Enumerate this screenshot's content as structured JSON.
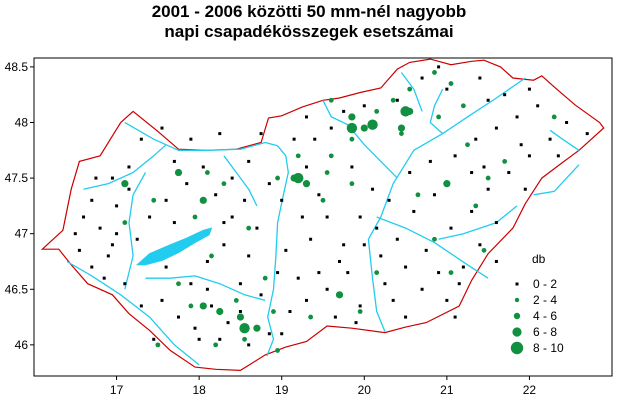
{
  "title_line1": "2001 - 2006 közötti 50 mm-nél nagyobb",
  "title_line2": "napi csapadékösszegek esetszámai",
  "colors": {
    "border": "#cc0000",
    "river": "#22ccee",
    "lake": "#22ccee",
    "dot": "#109040",
    "small": "#000000"
  },
  "chart_data": {
    "type": "scatter",
    "xlim": [
      16.0,
      23.0
    ],
    "ylim": [
      45.72,
      48.58
    ],
    "x_ticks": [
      "17",
      "18",
      "19",
      "20",
      "21",
      "22"
    ],
    "y_ticks": [
      "46",
      "46.5",
      "47",
      "47.5",
      "48",
      "48.5"
    ],
    "legend_title": "db",
    "legend_items": [
      "0 - 2",
      "2 - 4",
      "4 - 6",
      "6 - 8",
      "8 - 10"
    ],
    "border": [
      [
        16.1,
        46.86
      ],
      [
        16.35,
        47.03
      ],
      [
        16.45,
        47.4
      ],
      [
        16.55,
        47.65
      ],
      [
        16.8,
        47.7
      ],
      [
        17.05,
        48.0
      ],
      [
        17.2,
        48.1
      ],
      [
        17.5,
        47.92
      ],
      [
        17.75,
        47.76
      ],
      [
        18.1,
        47.75
      ],
      [
        18.45,
        47.76
      ],
      [
        18.75,
        47.82
      ],
      [
        18.84,
        48.04
      ],
      [
        19.0,
        48.06
      ],
      [
        19.25,
        48.14
      ],
      [
        19.5,
        48.2
      ],
      [
        19.7,
        48.22
      ],
      [
        19.95,
        48.27
      ],
      [
        20.2,
        48.31
      ],
      [
        20.4,
        48.48
      ],
      [
        20.55,
        48.54
      ],
      [
        20.8,
        48.57
      ],
      [
        21.05,
        48.52
      ],
      [
        21.3,
        48.55
      ],
      [
        21.45,
        48.56
      ],
      [
        21.65,
        48.5
      ],
      [
        21.8,
        48.4
      ],
      [
        22.05,
        48.38
      ],
      [
        22.15,
        48.42
      ],
      [
        22.3,
        48.32
      ],
      [
        22.55,
        48.16
      ],
      [
        22.85,
        48.0
      ],
      [
        22.9,
        47.95
      ],
      [
        22.6,
        47.75
      ],
      [
        22.4,
        47.64
      ],
      [
        22.15,
        47.5
      ],
      [
        21.95,
        47.27
      ],
      [
        21.8,
        47.05
      ],
      [
        21.5,
        46.82
      ],
      [
        21.3,
        46.58
      ],
      [
        21.15,
        46.35
      ],
      [
        20.75,
        46.2
      ],
      [
        20.5,
        46.16
      ],
      [
        20.25,
        46.11
      ],
      [
        19.85,
        46.15
      ],
      [
        19.55,
        46.17
      ],
      [
        19.3,
        46.03
      ],
      [
        19.05,
        45.98
      ],
      [
        18.8,
        45.91
      ],
      [
        18.5,
        45.77
      ],
      [
        18.2,
        45.78
      ],
      [
        17.95,
        45.8
      ],
      [
        17.65,
        45.95
      ],
      [
        17.4,
        46.13
      ],
      [
        17.15,
        46.28
      ],
      [
        16.95,
        46.45
      ],
      [
        16.65,
        46.55
      ],
      [
        16.45,
        46.72
      ],
      [
        16.3,
        46.86
      ]
    ],
    "rivers": [
      [
        [
          18.95,
          47.79
        ],
        [
          19.05,
          47.7
        ],
        [
          19.08,
          47.55
        ],
        [
          19.02,
          47.35
        ],
        [
          18.95,
          47.1
        ],
        [
          18.93,
          46.8
        ],
        [
          18.9,
          46.5
        ],
        [
          18.83,
          46.25
        ],
        [
          18.9,
          46.05
        ],
        [
          18.82,
          45.9
        ]
      ],
      [
        [
          17.1,
          48.0
        ],
        [
          17.45,
          47.85
        ],
        [
          17.75,
          47.75
        ],
        [
          18.1,
          47.75
        ],
        [
          18.5,
          47.76
        ],
        [
          18.8,
          47.82
        ],
        [
          18.95,
          47.79
        ]
      ],
      [
        [
          21.95,
          48.4
        ],
        [
          21.6,
          48.22
        ],
        [
          21.25,
          48.05
        ],
        [
          20.95,
          47.9
        ],
        [
          20.6,
          47.75
        ],
        [
          20.35,
          47.45
        ],
        [
          20.2,
          47.15
        ],
        [
          20.05,
          46.95
        ],
        [
          20.1,
          46.6
        ],
        [
          20.15,
          46.3
        ],
        [
          20.25,
          46.12
        ]
      ],
      [
        [
          22.25,
          47.93
        ],
        [
          22.4,
          47.85
        ],
        [
          22.6,
          47.75
        ]
      ],
      [
        [
          20.95,
          48.3
        ],
        [
          20.85,
          48.15
        ],
        [
          20.8,
          48.0
        ],
        [
          20.95,
          47.9
        ]
      ],
      [
        [
          20.45,
          48.45
        ],
        [
          20.6,
          48.3
        ],
        [
          20.7,
          48.1
        ]
      ],
      [
        [
          19.5,
          48.2
        ],
        [
          19.6,
          48.05
        ],
        [
          19.8,
          47.98
        ],
        [
          20.0,
          47.8
        ],
        [
          20.2,
          47.65
        ],
        [
          20.4,
          47.5
        ]
      ],
      [
        [
          20.15,
          47.15
        ],
        [
          20.5,
          47.05
        ],
        [
          20.85,
          46.92
        ],
        [
          21.25,
          46.72
        ],
        [
          21.5,
          46.6
        ]
      ],
      [
        [
          21.85,
          47.25
        ],
        [
          21.6,
          47.1
        ],
        [
          21.2,
          47.0
        ],
        [
          20.9,
          46.95
        ]
      ],
      [
        [
          16.6,
          47.4
        ],
        [
          16.9,
          47.45
        ],
        [
          17.2,
          47.55
        ],
        [
          17.45,
          47.7
        ],
        [
          17.6,
          47.8
        ]
      ],
      [
        [
          17.1,
          46.5
        ],
        [
          17.2,
          46.8
        ],
        [
          17.15,
          47.1
        ],
        [
          17.2,
          47.35
        ],
        [
          17.35,
          47.55
        ]
      ],
      [
        [
          17.35,
          46.6
        ],
        [
          17.65,
          46.6
        ],
        [
          17.95,
          46.62
        ],
        [
          18.25,
          46.55
        ],
        [
          18.55,
          46.45
        ],
        [
          18.8,
          46.4
        ]
      ],
      [
        [
          16.4,
          46.75
        ],
        [
          16.7,
          46.62
        ],
        [
          17.05,
          46.45
        ],
        [
          17.4,
          46.25
        ],
        [
          17.7,
          46.0
        ],
        [
          18.0,
          45.82
        ]
      ],
      [
        [
          22.05,
          47.35
        ],
        [
          22.3,
          47.38
        ],
        [
          22.6,
          47.62
        ]
      ],
      [
        [
          18.3,
          47.7
        ],
        [
          18.45,
          47.55
        ],
        [
          18.6,
          47.4
        ],
        [
          18.7,
          47.25
        ]
      ]
    ],
    "lake": [
      [
        17.25,
        46.72
      ],
      [
        17.4,
        46.82
      ],
      [
        17.65,
        46.9
      ],
      [
        17.85,
        46.96
      ],
      [
        18.05,
        47.03
      ],
      [
        18.15,
        47.05
      ],
      [
        18.12,
        46.99
      ],
      [
        17.95,
        46.92
      ],
      [
        17.75,
        46.83
      ],
      [
        17.55,
        46.76
      ],
      [
        17.35,
        46.72
      ]
    ],
    "small_points": [
      [
        16.5,
        47.0
      ],
      [
        16.6,
        47.15
      ],
      [
        16.7,
        47.3
      ],
      [
        16.55,
        46.85
      ],
      [
        16.85,
        46.6
      ],
      [
        16.9,
        46.8
      ],
      [
        16.8,
        47.05
      ],
      [
        17.0,
        47.0
      ],
      [
        17.0,
        47.25
      ],
      [
        16.95,
        47.5
      ],
      [
        17.15,
        47.6
      ],
      [
        17.3,
        47.85
      ],
      [
        17.55,
        47.95
      ],
      [
        17.7,
        47.65
      ],
      [
        17.85,
        47.45
      ],
      [
        17.6,
        47.3
      ],
      [
        17.4,
        47.15
      ],
      [
        17.25,
        46.95
      ],
      [
        17.55,
        46.4
      ],
      [
        17.3,
        46.35
      ],
      [
        17.1,
        46.55
      ],
      [
        17.75,
        46.25
      ],
      [
        17.95,
        46.15
      ],
      [
        18.15,
        46.35
      ],
      [
        17.9,
        46.55
      ],
      [
        18.1,
        46.75
      ],
      [
        18.3,
        46.9
      ],
      [
        18.4,
        47.15
      ],
      [
        18.2,
        47.35
      ],
      [
        18.05,
        47.6
      ],
      [
        18.4,
        47.5
      ],
      [
        18.6,
        47.65
      ],
      [
        18.55,
        47.3
      ],
      [
        18.7,
        47.05
      ],
      [
        18.6,
        46.8
      ],
      [
        18.5,
        46.55
      ],
      [
        18.35,
        46.2
      ],
      [
        18.6,
        46.0
      ],
      [
        18.85,
        46.1
      ],
      [
        19.1,
        46.3
      ],
      [
        19.2,
        46.6
      ],
      [
        19.05,
        46.85
      ],
      [
        19.35,
        46.95
      ],
      [
        19.55,
        47.15
      ],
      [
        19.45,
        47.35
      ],
      [
        19.3,
        47.6
      ],
      [
        19.4,
        47.85
      ],
      [
        19.6,
        47.95
      ],
      [
        19.85,
        47.6
      ],
      [
        20.1,
        47.4
      ],
      [
        20.3,
        47.3
      ],
      [
        20.55,
        47.55
      ],
      [
        20.8,
        47.65
      ],
      [
        21.1,
        47.7
      ],
      [
        21.35,
        47.85
      ],
      [
        21.6,
        47.95
      ],
      [
        21.85,
        48.05
      ],
      [
        22.1,
        48.15
      ],
      [
        22.45,
        48.0
      ],
      [
        22.25,
        47.85
      ],
      [
        22.0,
        47.7
      ],
      [
        21.75,
        47.55
      ],
      [
        21.5,
        47.4
      ],
      [
        21.3,
        47.2
      ],
      [
        21.05,
        47.05
      ],
      [
        20.75,
        46.85
      ],
      [
        20.5,
        46.7
      ],
      [
        20.25,
        46.55
      ],
      [
        19.95,
        46.35
      ],
      [
        19.65,
        46.25
      ],
      [
        19.8,
        46.65
      ],
      [
        20.0,
        46.9
      ],
      [
        20.4,
        46.95
      ],
      [
        20.7,
        46.5
      ],
      [
        21.0,
        46.4
      ],
      [
        21.2,
        46.7
      ],
      [
        21.4,
        46.9
      ],
      [
        21.6,
        47.1
      ],
      [
        19.55,
        46.5
      ],
      [
        19.75,
        46.9
      ],
      [
        19.25,
        47.15
      ],
      [
        18.85,
        47.45
      ],
      [
        19.15,
        47.85
      ],
      [
        20.4,
        48.2
      ],
      [
        21.0,
        48.3
      ],
      [
        21.4,
        48.4
      ],
      [
        20.7,
        48.4
      ],
      [
        20.0,
        48.15
      ],
      [
        19.75,
        48.1
      ],
      [
        21.5,
        48.2
      ],
      [
        22.0,
        48.3
      ],
      [
        21.9,
        47.8
      ],
      [
        22.7,
        47.9
      ],
      [
        16.7,
        46.7
      ],
      [
        17.45,
        46.05
      ],
      [
        18.0,
        46.05
      ],
      [
        18.25,
        46.05
      ],
      [
        18.75,
        46.45
      ],
      [
        19.3,
        46.4
      ],
      [
        19.9,
        46.2
      ],
      [
        20.5,
        46.25
      ],
      [
        21.1,
        46.25
      ],
      [
        21.3,
        47.55
      ],
      [
        20.85,
        47.35
      ],
      [
        20.15,
        47.05
      ],
      [
        19.7,
        46.75
      ],
      [
        19.0,
        47.3
      ],
      [
        18.3,
        47.1
      ],
      [
        17.7,
        47.1
      ],
      [
        17.15,
        47.4
      ],
      [
        16.75,
        47.5
      ],
      [
        17.9,
        47.85
      ],
      [
        18.25,
        47.9
      ],
      [
        18.75,
        47.9
      ],
      [
        19.3,
        48.05
      ],
      [
        20.9,
        48.5
      ],
      [
        21.7,
        48.25
      ],
      [
        22.35,
        47.7
      ],
      [
        21.95,
        47.4
      ],
      [
        21.6,
        46.75
      ],
      [
        20.9,
        46.65
      ],
      [
        20.2,
        46.8
      ],
      [
        19.45,
        46.65
      ],
      [
        18.95,
        46.65
      ],
      [
        18.1,
        46.5
      ],
      [
        17.6,
        46.7
      ],
      [
        16.95,
        46.9
      ],
      [
        18.5,
        46.3
      ],
      [
        19.0,
        46.1
      ],
      [
        20.35,
        46.4
      ],
      [
        21.15,
        46.55
      ],
      [
        21.45,
        47.6
      ],
      [
        20.6,
        47.2
      ],
      [
        19.95,
        47.15
      ]
    ],
    "medium_points": [
      [
        17.75,
        46.55
      ],
      [
        17.45,
        47.3
      ],
      [
        17.95,
        47.15
      ],
      [
        18.1,
        47.55
      ],
      [
        18.8,
        46.6
      ],
      [
        18.45,
        46.4
      ],
      [
        19.2,
        47.7
      ],
      [
        19.55,
        47.55
      ],
      [
        19.6,
        47.7
      ],
      [
        19.85,
        47.85
      ],
      [
        20.15,
        48.1
      ],
      [
        20.35,
        48.2
      ],
      [
        20.55,
        48.3
      ],
      [
        20.85,
        48.45
      ],
      [
        21.05,
        48.35
      ],
      [
        21.2,
        48.15
      ],
      [
        20.9,
        48.05
      ],
      [
        21.5,
        47.5
      ],
      [
        21.35,
        47.25
      ],
      [
        20.65,
        47.35
      ],
      [
        20.15,
        46.65
      ],
      [
        19.95,
        46.3
      ],
      [
        19.35,
        46.25
      ],
      [
        18.9,
        46.3
      ],
      [
        18.55,
        46.05
      ],
      [
        18.2,
        46.0
      ],
      [
        17.5,
        46.0
      ],
      [
        17.1,
        47.1
      ],
      [
        18.3,
        47.45
      ],
      [
        18.95,
        47.5
      ],
      [
        19.85,
        47.45
      ],
      [
        20.85,
        46.95
      ],
      [
        21.05,
        46.65
      ],
      [
        17.9,
        46.35
      ],
      [
        18.6,
        47.05
      ],
      [
        21.25,
        47.8
      ],
      [
        21.7,
        47.65
      ],
      [
        22.3,
        48.05
      ],
      [
        19.6,
        48.2
      ],
      [
        20.45,
        47.9
      ],
      [
        18.15,
        46.8
      ],
      [
        18.95,
        45.95
      ],
      [
        19.5,
        47.3
      ],
      [
        21.45,
        46.85
      ]
    ],
    "large_points": [
      [
        17.75,
        47.55
      ],
      [
        17.1,
        47.45
      ],
      [
        18.05,
        47.3
      ],
      [
        18.25,
        46.3
      ],
      [
        18.5,
        46.25
      ],
      [
        18.7,
        46.15
      ],
      [
        19.15,
        47.5
      ],
      [
        19.3,
        47.45
      ],
      [
        20.0,
        47.95
      ],
      [
        19.85,
        48.05
      ],
      [
        20.55,
        48.1
      ],
      [
        20.45,
        47.95
      ],
      [
        21.0,
        47.45
      ],
      [
        19.7,
        46.45
      ],
      [
        18.05,
        46.35
      ]
    ],
    "xlarge_points": [
      [
        19.2,
        47.5
      ],
      [
        19.85,
        47.95
      ],
      [
        20.5,
        48.1
      ],
      [
        20.1,
        47.98
      ],
      [
        18.55,
        46.15
      ]
    ]
  }
}
